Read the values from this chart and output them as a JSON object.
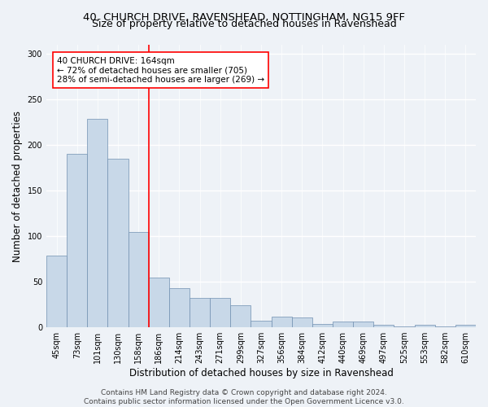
{
  "title_line1": "40, CHURCH DRIVE, RAVENSHEAD, NOTTINGHAM, NG15 9FF",
  "title_line2": "Size of property relative to detached houses in Ravenshead",
  "xlabel": "Distribution of detached houses by size in Ravenshead",
  "ylabel": "Number of detached properties",
  "categories": [
    "45sqm",
    "73sqm",
    "101sqm",
    "130sqm",
    "158sqm",
    "186sqm",
    "214sqm",
    "243sqm",
    "271sqm",
    "299sqm",
    "327sqm",
    "356sqm",
    "384sqm",
    "412sqm",
    "440sqm",
    "469sqm",
    "497sqm",
    "525sqm",
    "553sqm",
    "582sqm",
    "610sqm"
  ],
  "values": [
    79,
    190,
    229,
    185,
    105,
    55,
    43,
    32,
    32,
    24,
    7,
    12,
    11,
    4,
    6,
    6,
    3,
    1,
    3,
    1,
    3
  ],
  "bar_color": "#c8d8e8",
  "bar_edge_color": "#7090b0",
  "ref_line_x": 4.5,
  "ref_line_color": "red",
  "annotation_text": "40 CHURCH DRIVE: 164sqm\n← 72% of detached houses are smaller (705)\n28% of semi-detached houses are larger (269) →",
  "annotation_box_color": "white",
  "annotation_box_edge": "red",
  "ylim": [
    0,
    310
  ],
  "yticks": [
    0,
    50,
    100,
    150,
    200,
    250,
    300
  ],
  "footer_line1": "Contains HM Land Registry data © Crown copyright and database right 2024.",
  "footer_line2": "Contains public sector information licensed under the Open Government Licence v3.0.",
  "background_color": "#eef2f7",
  "plot_background_color": "#eef2f7",
  "grid_color": "white",
  "title_fontsize": 9.5,
  "subtitle_fontsize": 9,
  "axis_label_fontsize": 8.5,
  "tick_fontsize": 7,
  "annotation_fontsize": 7.5,
  "footer_fontsize": 6.5
}
